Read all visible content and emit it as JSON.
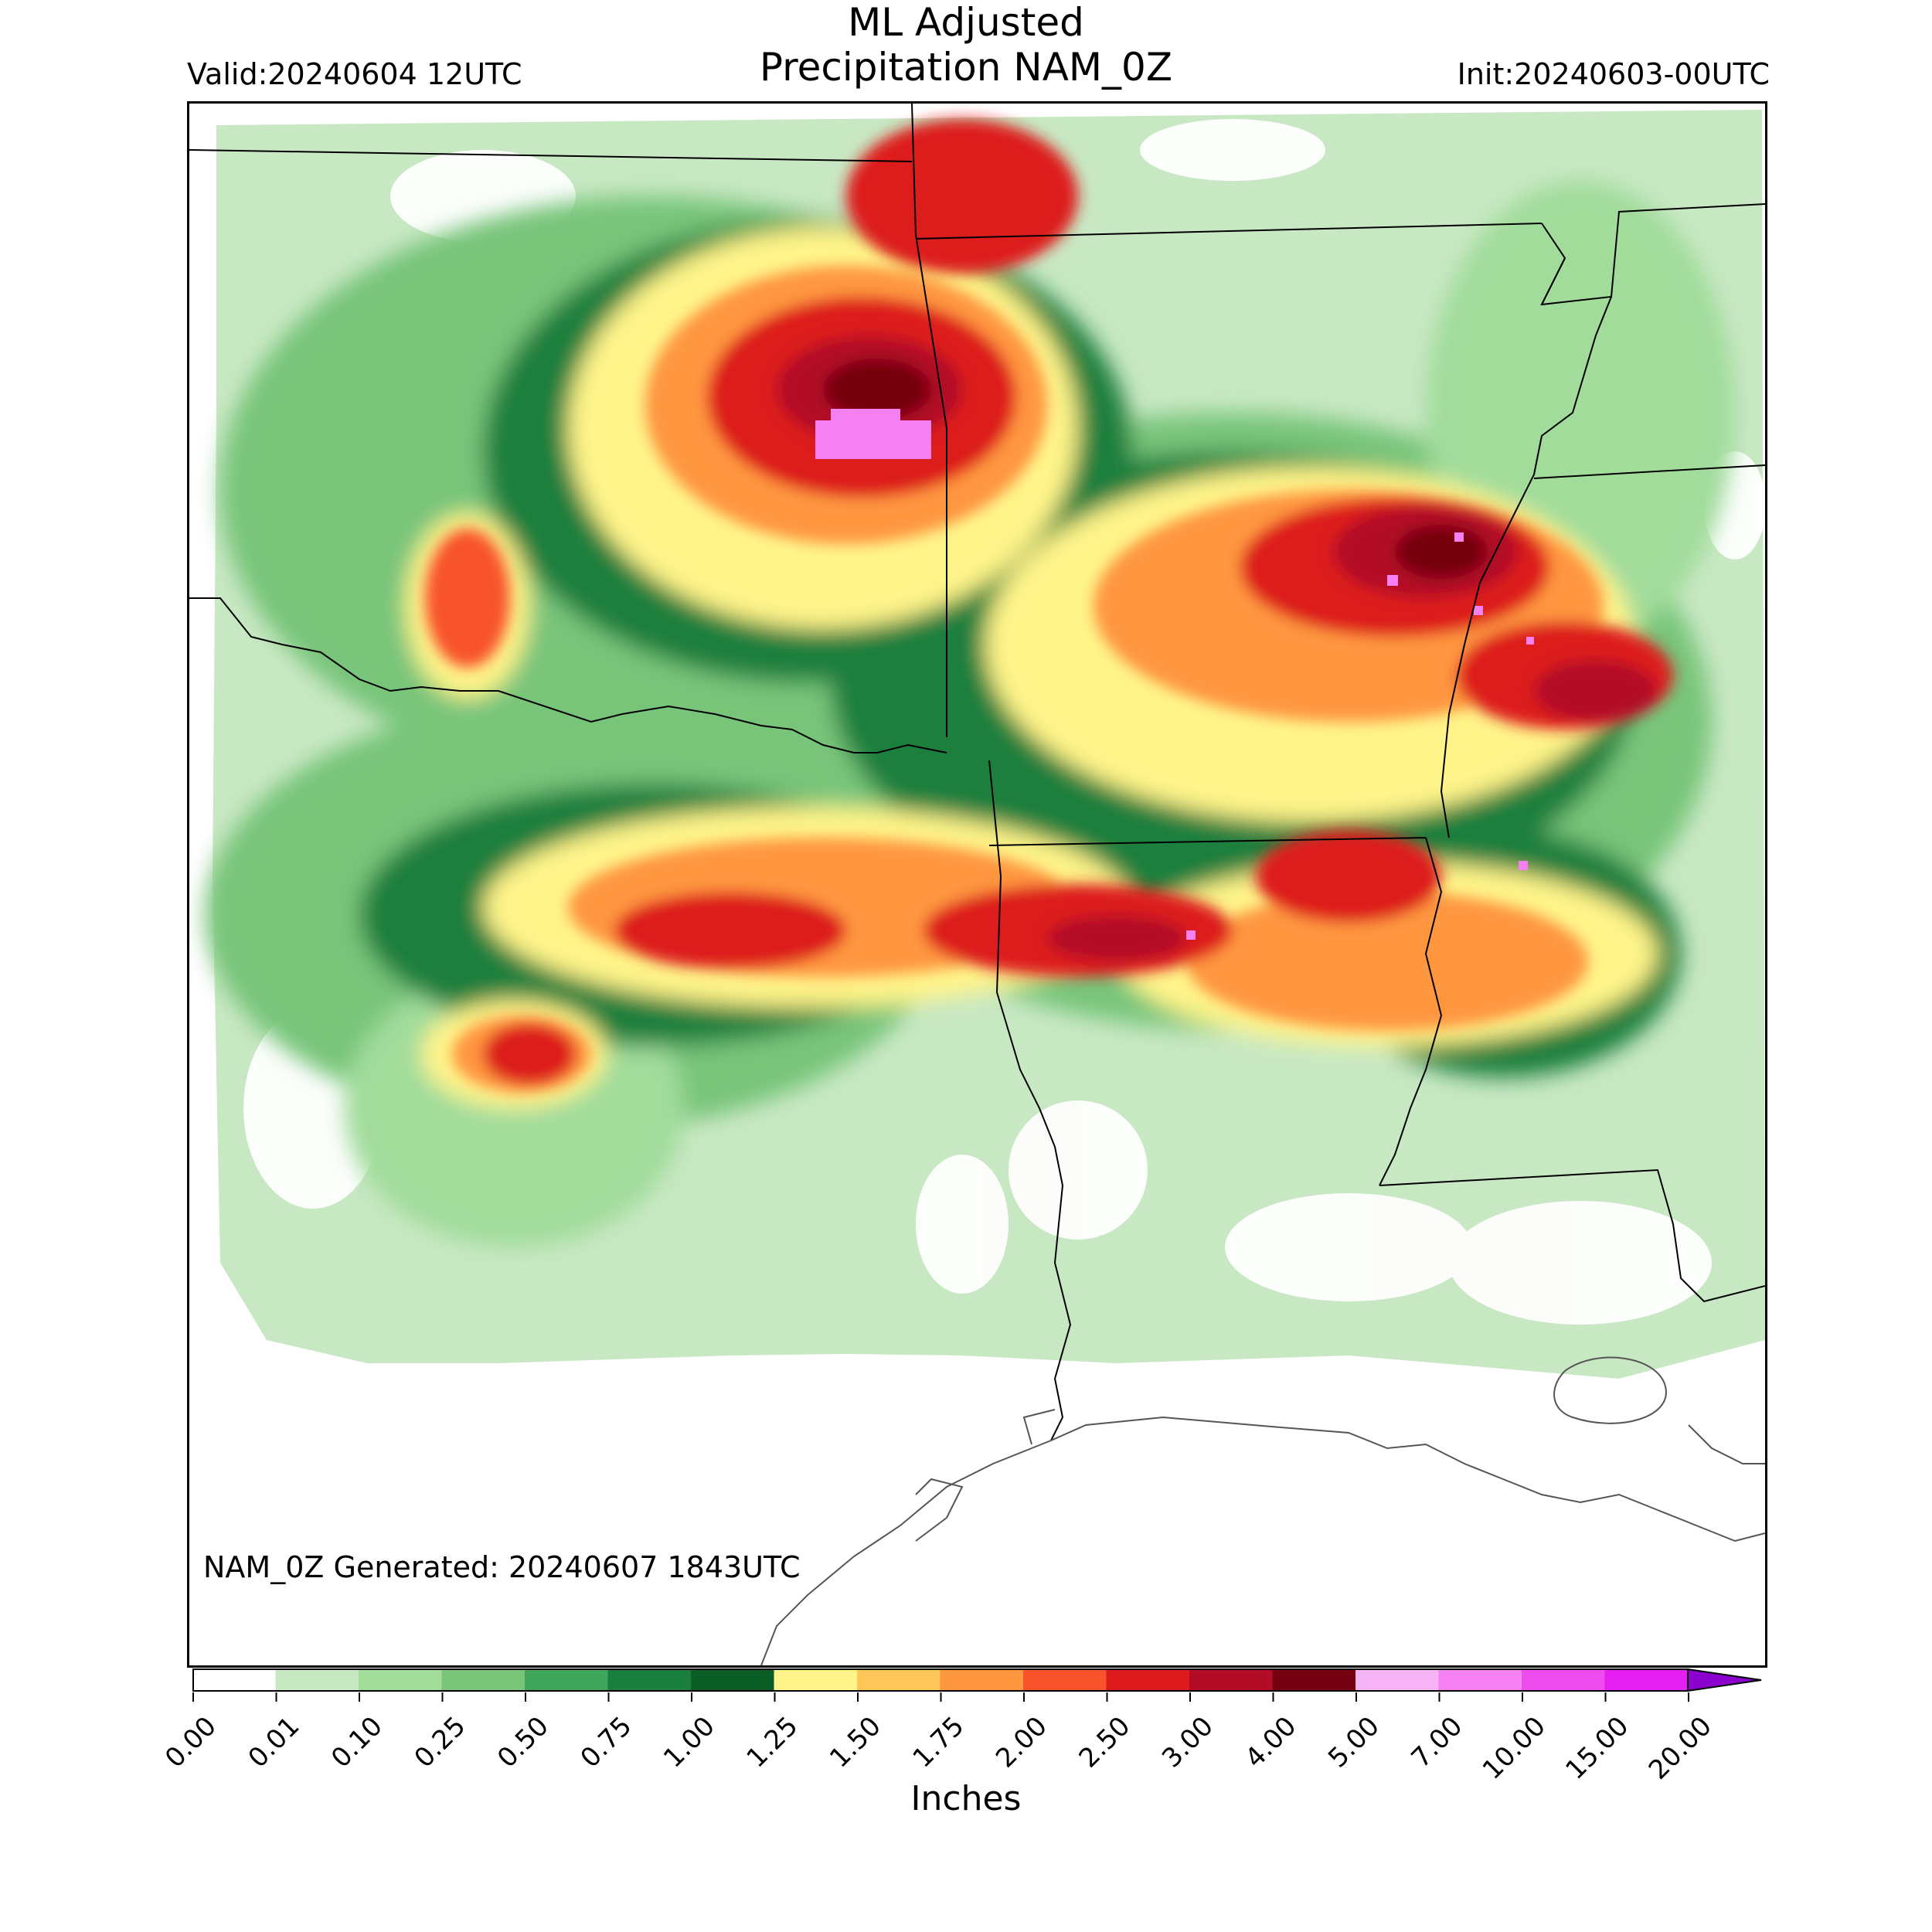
{
  "header": {
    "title_line1": "ML Adjusted",
    "title_line2": "Precipitation NAM_0Z",
    "valid": "Valid:20240604 12UTC",
    "init": "Init:20240603-00UTC"
  },
  "footer": {
    "generated": "NAM_0Z Generated: 20240607 1843UTC"
  },
  "colorbar": {
    "label": "Inches",
    "ticks": [
      "0.00",
      "0.01",
      "0.10",
      "0.25",
      "0.50",
      "0.75",
      "1.00",
      "1.25",
      "1.50",
      "1.75",
      "2.00",
      "2.50",
      "3.00",
      "4.00",
      "5.00",
      "7.00",
      "10.00",
      "15.00",
      "20.00"
    ],
    "colors": [
      "#ffffff",
      "#c8e8c3",
      "#a1dc9b",
      "#78c57a",
      "#3ea55a",
      "#1a7f3c",
      "#0b5e26",
      "#fff48a",
      "#ffc65a",
      "#ff9640",
      "#f8532a",
      "#dd1b1d",
      "#b30c27",
      "#760011",
      "#f7b4f4",
      "#f480f1",
      "#ef4cf0",
      "#e51ff1",
      "#ba10e0",
      "#8b02cf"
    ]
  }
}
